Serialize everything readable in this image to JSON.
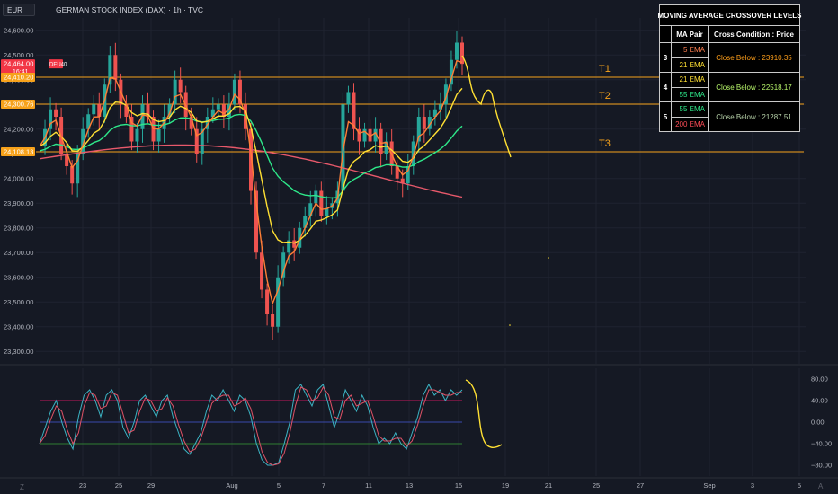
{
  "header": {
    "currency": "EUR",
    "title": "GERMAN STOCK INDEX (DAX) · 1h · TVC"
  },
  "ma_table": {
    "title": "MOVING AVERAGE CROSSOVER LEVELS",
    "col_pair": "MA Pair",
    "col_cond": "Cross Condition : Price",
    "rows": [
      {
        "n": "3",
        "fast": "5 EMA",
        "slow": "21 EMA",
        "cond": "Close Below : 23910.35",
        "fast_color": "#ff7f50",
        "slow_color": "#ffe033",
        "cond_color": "#ff9f1a"
      },
      {
        "n": "4",
        "fast": "21 EMA",
        "slow": "55 EMA",
        "cond": "Close Below : 22518.17",
        "fast_color": "#ffe033",
        "slow_color": "#2ee88a",
        "cond_color": "#b7f56a"
      },
      {
        "n": "5",
        "fast": "55 EMA",
        "slow": "200 EMA",
        "cond": "Close Below : 21287.51",
        "fast_color": "#2ee88a",
        "slow_color": "#ff4d57",
        "cond_color": "#b6d1a8"
      }
    ]
  },
  "colors": {
    "background": "#151924",
    "grid": "#1f2330",
    "up": "#26a69a",
    "down": "#ef5350",
    "level_line": "#f7a21b",
    "ema5": "#ff7f36",
    "ema21": "#ffe033",
    "ema55": "#2ee88a",
    "ema200": "#e8596b",
    "projection": "#ffe033"
  },
  "price_badges": [
    {
      "label": "DEU40",
      "value": "24,464.00",
      "sub": "16:41",
      "y": 24464,
      "color": "#f23645"
    },
    {
      "label": "",
      "value": "24,410.20",
      "sub": "",
      "y": 24410.2,
      "color": "#f7a21b"
    },
    {
      "label": "",
      "value": "24,300.76",
      "sub": "",
      "y": 24300.76,
      "color": "#f7a21b"
    },
    {
      "label": "",
      "value": "24,108.13",
      "sub": "",
      "y": 24108.13,
      "color": "#f7a21b"
    }
  ],
  "footer": {
    "tv_mark": "Z",
    "settings": "A"
  },
  "chart_data": [
    {
      "type": "candlestick",
      "title": "GERMAN STOCK INDEX (DAX) · 1h · TVC",
      "ylim": [
        23250,
        24650
      ],
      "y_ticks": [
        23300,
        23400,
        23500,
        23600,
        23700,
        23800,
        23900,
        24000,
        24100,
        24200,
        24300,
        24400,
        24500,
        24600
      ],
      "x_ticks": [
        "23",
        "25",
        "29",
        "Aug",
        "5",
        "7",
        "11",
        "13",
        "15",
        "19",
        "21",
        "25",
        "27",
        "Sep",
        "3",
        "5"
      ],
      "levels": [
        {
          "name": "T1",
          "value": 24410.2
        },
        {
          "name": "T2",
          "value": 24300.76
        },
        {
          "name": "T3",
          "value": 24108.13
        }
      ],
      "close_path": [
        24130,
        24200,
        24280,
        24250,
        24100,
        24050,
        23980,
        24100,
        24200,
        24260,
        24300,
        24250,
        24380,
        24500,
        24400,
        24300,
        24250,
        24150,
        24200,
        24300,
        24250,
        24150,
        24200,
        24250,
        24300,
        24400,
        24350,
        24250,
        24200,
        24100,
        24200,
        24250,
        24280,
        24300,
        24250,
        24300,
        24400,
        24300,
        24200,
        23950,
        23700,
        23550,
        23450,
        23400,
        23600,
        23700,
        23750,
        23720,
        23800,
        23850,
        23900,
        23950,
        23850,
        23880,
        23900,
        23950,
        24300,
        24350,
        24200,
        24150,
        24200,
        24150,
        24200,
        24100,
        24150,
        24050,
        24000,
        23980,
        24050,
        24150,
        24250,
        24200,
        24250,
        24280,
        24300,
        24380,
        24480,
        24550,
        24464
      ],
      "series": [
        {
          "name": "5 EMA"
        },
        {
          "name": "21 EMA"
        },
        {
          "name": "55 EMA"
        },
        {
          "name": "200 EMA"
        }
      ]
    },
    {
      "type": "line",
      "title": "",
      "ylim": [
        -100,
        100
      ],
      "y_ticks": [
        80,
        40,
        0,
        -40,
        -80
      ],
      "y_tick_labels": [
        "80.00",
        "40.00",
        "0.00",
        "−40.00",
        "−80.00"
      ],
      "bands": [
        40,
        0,
        -40
      ],
      "series": [
        {
          "name": "",
          "values": [
            -40,
            -10,
            20,
            40,
            0,
            -30,
            -50,
            10,
            50,
            60,
            40,
            10,
            50,
            60,
            40,
            -10,
            -30,
            0,
            40,
            50,
            30,
            10,
            40,
            50,
            10,
            -20,
            -50,
            -60,
            -40,
            -20,
            20,
            50,
            40,
            60,
            40,
            20,
            50,
            40,
            10,
            -40,
            -70,
            -80,
            -80,
            -75,
            -40,
            0,
            60,
            70,
            50,
            30,
            60,
            70,
            30,
            -10,
            20,
            60,
            40,
            20,
            50,
            30,
            -10,
            -40,
            -30,
            -40,
            -20,
            -40,
            -50,
            -20,
            10,
            50,
            70,
            50,
            60,
            40,
            60,
            50,
            60
          ]
        }
      ]
    }
  ]
}
